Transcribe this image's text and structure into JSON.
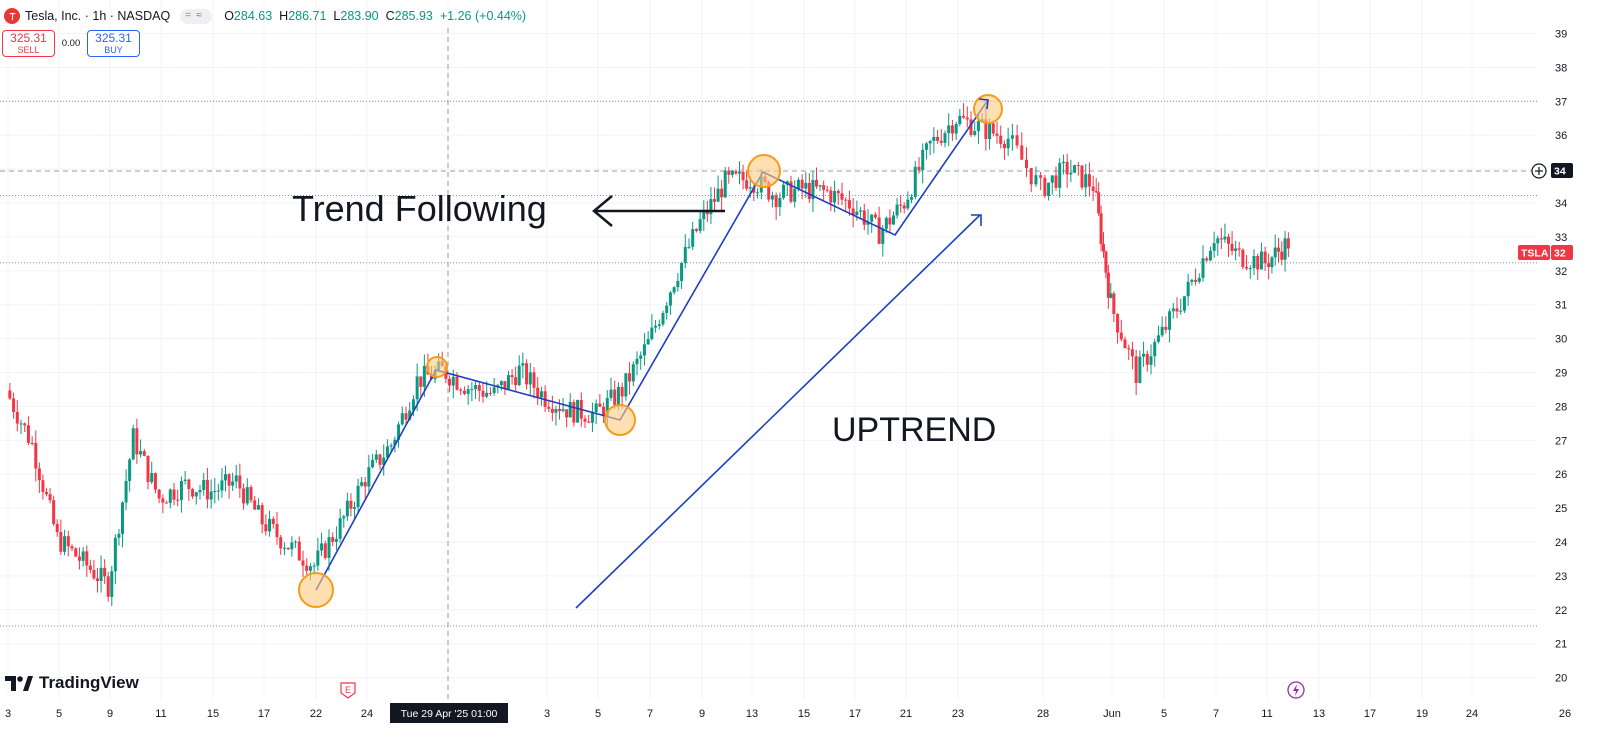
{
  "header": {
    "symbol_title": "Tesla, Inc. · 1h · NASDAQ",
    "ohlc": [
      {
        "k": "O",
        "v": "284.63"
      },
      {
        "k": "H",
        "v": "286.71"
      },
      {
        "k": "L",
        "v": "283.90"
      },
      {
        "k": "C",
        "v": "285.93"
      },
      {
        "k": "",
        "v": "+1.26 (+0.44%)"
      }
    ]
  },
  "trade": {
    "sell_price": "325.31",
    "sell_label": "SELL",
    "spread": "0.00",
    "buy_price": "325.31",
    "buy_label": "BUY"
  },
  "branding": {
    "logo_text": "TradingView"
  },
  "colors": {
    "up": "#089981",
    "down": "#f23645",
    "trend": "#1e3fbf",
    "highlight": "#ffcc80"
  },
  "chart_data": {
    "type": "candlestick",
    "symbol": "TSLA",
    "y_tick_labels": [
      "39",
      "38",
      "37",
      "36",
      "35",
      "34",
      "33",
      "32",
      "31",
      "30",
      "29",
      "28",
      "27",
      "26",
      "25",
      "24",
      "23",
      "22",
      "21",
      "20"
    ],
    "x_tick_labels": [
      "3",
      "5",
      "9",
      "11",
      "15",
      "17",
      "22",
      "24",
      "Tue 29 Apr '25   01:00",
      "3",
      "5",
      "7",
      "9",
      "13",
      "15",
      "17",
      "21",
      "23",
      "28",
      "Jun",
      "5",
      "7",
      "11",
      "13",
      "17",
      "19",
      "24",
      "26"
    ],
    "price_tags": [
      {
        "text": "34"
      },
      {
        "text": "TSLA"
      },
      {
        "text": "32"
      }
    ],
    "annotations": {
      "left_label": "Trend Following",
      "center_label": "UPTREND"
    },
    "series": [
      {
        "date": "Apr 3",
        "v": 284
      },
      {
        "date": "Apr 4",
        "v": 268
      },
      {
        "date": "Apr 7",
        "v": 240
      },
      {
        "date": "Apr 8",
        "v": 233
      },
      {
        "date": "Apr 9",
        "v": 226
      },
      {
        "date": "Apr 10",
        "v": 270
      },
      {
        "date": "Apr 11",
        "v": 252
      },
      {
        "date": "Apr 14",
        "v": 256
      },
      {
        "date": "Apr 15",
        "v": 254
      },
      {
        "date": "Apr 16",
        "v": 257
      },
      {
        "date": "Apr 17",
        "v": 245
      },
      {
        "date": "Apr 21",
        "v": 238
      },
      {
        "date": "Apr 22",
        "v": 232
      },
      {
        "date": "Apr 23",
        "v": 244
      },
      {
        "date": "Apr 24",
        "v": 258
      },
      {
        "date": "Apr 25",
        "v": 268
      },
      {
        "date": "Apr 28",
        "v": 287
      },
      {
        "date": "Apr 29",
        "v": 290
      },
      {
        "date": "Apr 30",
        "v": 285
      },
      {
        "date": "May 1",
        "v": 283
      },
      {
        "date": "May 2",
        "v": 290
      },
      {
        "date": "May 5",
        "v": 282
      },
      {
        "date": "May 6",
        "v": 278
      },
      {
        "date": "May 7",
        "v": 277
      },
      {
        "date": "May 8",
        "v": 284
      },
      {
        "date": "May 9",
        "v": 298
      },
      {
        "date": "May 12",
        "v": 317
      },
      {
        "date": "May 13",
        "v": 334
      },
      {
        "date": "May 14",
        "v": 346
      },
      {
        "date": "May 15",
        "v": 347
      },
      {
        "date": "May 16",
        "v": 342
      },
      {
        "date": "May 19",
        "v": 344
      },
      {
        "date": "May 20",
        "v": 343
      },
      {
        "date": "May 21",
        "v": 339
      },
      {
        "date": "May 22",
        "v": 331
      },
      {
        "date": "May 23",
        "v": 340
      },
      {
        "date": "May 27",
        "v": 357
      },
      {
        "date": "May 28",
        "v": 365
      },
      {
        "date": "May 29",
        "v": 362
      },
      {
        "date": "May 30",
        "v": 359
      },
      {
        "date": "Jun 2",
        "v": 344
      },
      {
        "date": "Jun 3",
        "v": 350
      },
      {
        "date": "Jun 4",
        "v": 345
      },
      {
        "date": "Jun 5",
        "v": 310
      },
      {
        "date": "Jun 6",
        "v": 289
      },
      {
        "date": "Jun 9",
        "v": 301
      },
      {
        "date": "Jun 10",
        "v": 314
      },
      {
        "date": "Jun 11",
        "v": 330
      },
      {
        "date": "Jun 12",
        "v": 324
      },
      {
        "date": "Jun 13",
        "v": 322
      },
      {
        "date": "Jun 16",
        "v": 328
      }
    ]
  }
}
